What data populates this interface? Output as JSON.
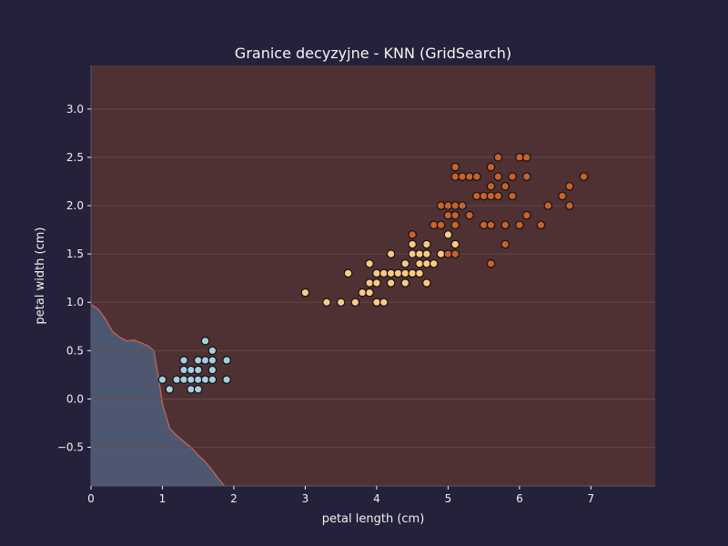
{
  "chart_data": {
    "type": "scatter",
    "title": "Granice decyzyjne - KNN (GridSearch)",
    "xlabel": "petal length (cm)",
    "ylabel": "petal width (cm)",
    "xlim": [
      0,
      7.9
    ],
    "ylim": [
      -0.9,
      3.45
    ],
    "x_ticks": [
      0,
      1,
      2,
      3,
      4,
      5,
      6,
      7
    ],
    "y_ticks": [
      -0.5,
      0.0,
      0.5,
      1.0,
      1.5,
      2.0,
      2.5,
      3.0
    ],
    "x_tick_labels": [
      "0",
      "1",
      "2",
      "3",
      "4",
      "5",
      "6",
      "7"
    ],
    "y_tick_labels": [
      "−0.5",
      "0.0",
      "0.5",
      "1.0",
      "1.5",
      "2.0",
      "2.5",
      "3.0"
    ],
    "grid": true,
    "colors": {
      "page_bg": "#23223a",
      "region_a": "#4d5870",
      "region_b": "#4f3134",
      "boundary": "#c06a5c",
      "grid": "#6a4a4c",
      "series_a": "#a6cde0",
      "series_b": "#fcc882",
      "series_c": "#c8622a"
    },
    "decision_boundary": [
      [
        0.0,
        0.98
      ],
      [
        0.1,
        0.93
      ],
      [
        0.2,
        0.83
      ],
      [
        0.3,
        0.7
      ],
      [
        0.4,
        0.64
      ],
      [
        0.5,
        0.6
      ],
      [
        0.6,
        0.61
      ],
      [
        0.7,
        0.58
      ],
      [
        0.8,
        0.55
      ],
      [
        0.88,
        0.5
      ],
      [
        0.95,
        0.2
      ],
      [
        1.0,
        -0.05
      ],
      [
        1.1,
        -0.3
      ],
      [
        1.2,
        -0.38
      ],
      [
        1.3,
        -0.44
      ],
      [
        1.4,
        -0.5
      ],
      [
        1.5,
        -0.58
      ],
      [
        1.6,
        -0.65
      ],
      [
        1.7,
        -0.74
      ],
      [
        1.8,
        -0.84
      ],
      [
        1.87,
        -0.9
      ]
    ],
    "series": [
      {
        "values": [
          [
            1.0,
            0.2
          ],
          [
            1.1,
            0.1
          ],
          [
            1.2,
            0.2
          ],
          [
            1.3,
            0.2
          ],
          [
            1.3,
            0.3
          ],
          [
            1.3,
            0.4
          ],
          [
            1.4,
            0.1
          ],
          [
            1.4,
            0.2
          ],
          [
            1.4,
            0.3
          ],
          [
            1.5,
            0.1
          ],
          [
            1.5,
            0.2
          ],
          [
            1.5,
            0.3
          ],
          [
            1.5,
            0.4
          ],
          [
            1.6,
            0.2
          ],
          [
            1.6,
            0.4
          ],
          [
            1.6,
            0.6
          ],
          [
            1.7,
            0.2
          ],
          [
            1.7,
            0.3
          ],
          [
            1.7,
            0.4
          ],
          [
            1.7,
            0.5
          ],
          [
            1.9,
            0.2
          ],
          [
            1.9,
            0.4
          ]
        ]
      },
      {
        "values": [
          [
            3.0,
            1.1
          ],
          [
            3.3,
            1.0
          ],
          [
            3.5,
            1.0
          ],
          [
            3.6,
            1.3
          ],
          [
            3.7,
            1.0
          ],
          [
            3.8,
            1.1
          ],
          [
            3.9,
            1.1
          ],
          [
            3.9,
            1.2
          ],
          [
            3.9,
            1.4
          ],
          [
            4.0,
            1.0
          ],
          [
            4.0,
            1.2
          ],
          [
            4.0,
            1.3
          ],
          [
            4.1,
            1.0
          ],
          [
            4.1,
            1.3
          ],
          [
            4.2,
            1.2
          ],
          [
            4.2,
            1.3
          ],
          [
            4.2,
            1.5
          ],
          [
            4.3,
            1.3
          ],
          [
            4.4,
            1.2
          ],
          [
            4.4,
            1.3
          ],
          [
            4.4,
            1.4
          ],
          [
            4.5,
            1.3
          ],
          [
            4.5,
            1.5
          ],
          [
            4.5,
            1.6
          ],
          [
            4.5,
            1.7
          ],
          [
            4.6,
            1.3
          ],
          [
            4.6,
            1.4
          ],
          [
            4.6,
            1.5
          ],
          [
            4.7,
            1.2
          ],
          [
            4.7,
            1.4
          ],
          [
            4.7,
            1.5
          ],
          [
            4.7,
            1.6
          ],
          [
            4.8,
            1.4
          ],
          [
            4.9,
            1.5
          ],
          [
            5.0,
            1.7
          ],
          [
            5.1,
            1.6
          ]
        ]
      },
      {
        "values": [
          [
            4.5,
            1.7
          ],
          [
            4.8,
            1.8
          ],
          [
            4.9,
            1.8
          ],
          [
            4.9,
            2.0
          ],
          [
            5.0,
            1.5
          ],
          [
            5.0,
            1.9
          ],
          [
            5.0,
            2.0
          ],
          [
            5.1,
            1.5
          ],
          [
            5.1,
            1.8
          ],
          [
            5.1,
            1.9
          ],
          [
            5.1,
            2.0
          ],
          [
            5.1,
            2.3
          ],
          [
            5.1,
            2.4
          ],
          [
            5.2,
            2.0
          ],
          [
            5.2,
            2.3
          ],
          [
            5.3,
            1.9
          ],
          [
            5.3,
            2.3
          ],
          [
            5.4,
            2.1
          ],
          [
            5.4,
            2.3
          ],
          [
            5.5,
            1.8
          ],
          [
            5.5,
            2.1
          ],
          [
            5.6,
            1.4
          ],
          [
            5.6,
            1.8
          ],
          [
            5.6,
            2.1
          ],
          [
            5.6,
            2.2
          ],
          [
            5.6,
            2.4
          ],
          [
            5.7,
            2.1
          ],
          [
            5.7,
            2.3
          ],
          [
            5.7,
            2.5
          ],
          [
            5.8,
            1.6
          ],
          [
            5.8,
            1.8
          ],
          [
            5.8,
            2.2
          ],
          [
            5.9,
            2.1
          ],
          [
            5.9,
            2.3
          ],
          [
            6.0,
            1.8
          ],
          [
            6.0,
            2.5
          ],
          [
            6.1,
            1.9
          ],
          [
            6.1,
            2.3
          ],
          [
            6.1,
            2.5
          ],
          [
            6.3,
            1.8
          ],
          [
            6.4,
            2.0
          ],
          [
            6.6,
            2.1
          ],
          [
            6.7,
            2.0
          ],
          [
            6.7,
            2.2
          ],
          [
            6.9,
            2.3
          ]
        ]
      }
    ]
  }
}
